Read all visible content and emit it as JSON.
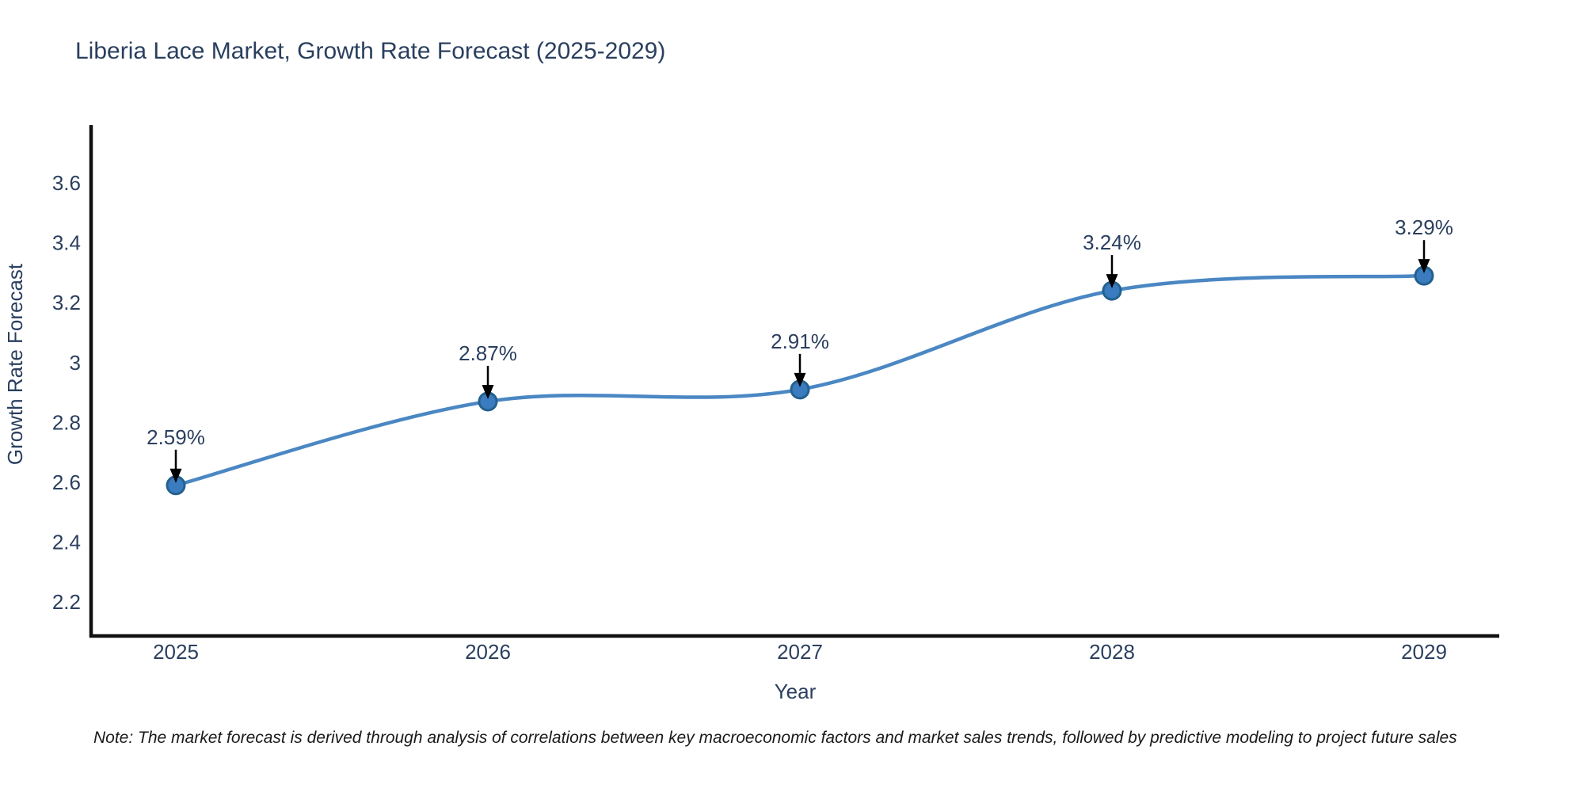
{
  "chart_data": {
    "type": "line",
    "title": "Liberia Lace Market, Growth Rate Forecast (2025-2029)",
    "xlabel": "Year",
    "ylabel": "Growth Rate Forecast",
    "x": [
      2025,
      2026,
      2027,
      2028,
      2029
    ],
    "x_tick_labels": [
      "2025",
      "2026",
      "2027",
      "2028",
      "2029"
    ],
    "series": [
      {
        "name": "Growth Rate Forecast",
        "values": [
          2.59,
          2.87,
          2.91,
          3.24,
          3.29
        ],
        "point_labels": [
          "2.59%",
          "2.87%",
          "2.91%",
          "3.24%",
          "3.29%"
        ]
      }
    ],
    "y_ticks": [
      2.2,
      2.4,
      2.6,
      2.8,
      3,
      3.2,
      3.4,
      3.6
    ],
    "y_tick_labels": [
      "2.2",
      "2.4",
      "2.6",
      "2.8",
      "3",
      "3.2",
      "3.4",
      "3.6"
    ],
    "ylim": [
      2.09,
      3.79
    ],
    "xlim": [
      2024.73,
      2029.26
    ],
    "grid": false,
    "legend": "none",
    "line_shape": "spline",
    "marker": "circle",
    "annotation_arrows": true,
    "note": "Note: The market forecast is derived through analysis of correlations between key macroeconomic factors and market sales trends, followed by predictive modeling to project future sales",
    "colors": {
      "title_text": "#2a3f5f",
      "axis_text": "#2a3f5f",
      "axis_line": "#101010",
      "line": "#4a87c3",
      "marker_fill": "#3a7cbf",
      "marker_edge": "#24618e",
      "arrow": "#000000",
      "note_text": "#1a1a1a",
      "background": "#ffffff"
    }
  }
}
